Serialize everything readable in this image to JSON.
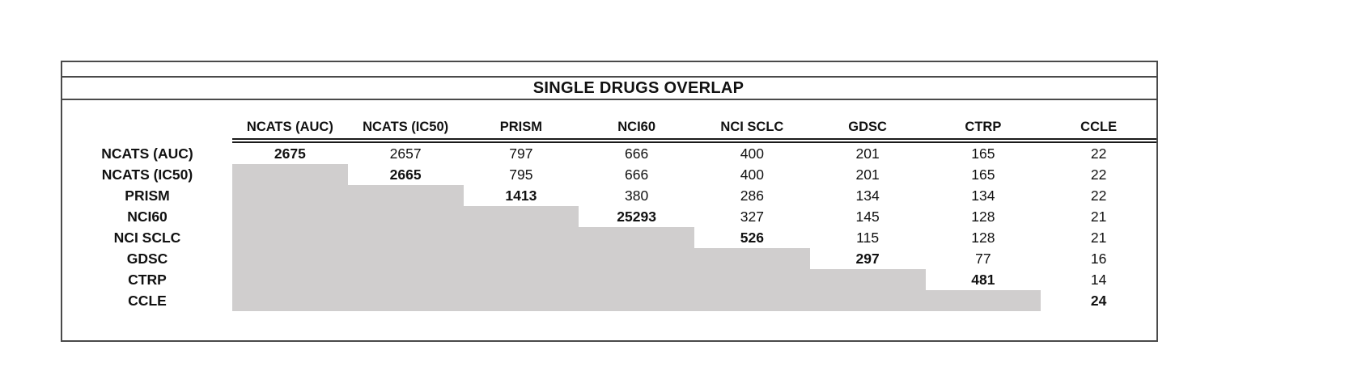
{
  "chart_data": {
    "type": "table",
    "title": "SINGLE DRUGS OVERLAP",
    "columns": [
      "NCATS (AUC)",
      "NCATS (IC50)",
      "PRISM",
      "NCI60",
      "NCI SCLC",
      "GDSC",
      "CTRP",
      "CCLE"
    ],
    "rows": [
      {
        "label": "NCATS (AUC)",
        "values": [
          "2675",
          "2657",
          "797",
          "666",
          "400",
          "201",
          "165",
          "22"
        ]
      },
      {
        "label": "NCATS (IC50)",
        "values": [
          null,
          "2665",
          "795",
          "666",
          "400",
          "201",
          "165",
          "22"
        ]
      },
      {
        "label": "PRISM",
        "values": [
          null,
          null,
          "1413",
          "380",
          "286",
          "134",
          "134",
          "22"
        ]
      },
      {
        "label": "NCI60",
        "values": [
          null,
          null,
          null,
          "25293",
          "327",
          "145",
          "128",
          "21"
        ]
      },
      {
        "label": "NCI SCLC",
        "values": [
          null,
          null,
          null,
          null,
          "526",
          "115",
          "128",
          "21"
        ]
      },
      {
        "label": "GDSC",
        "values": [
          null,
          null,
          null,
          null,
          null,
          "297",
          "77",
          "16"
        ]
      },
      {
        "label": "CTRP",
        "values": [
          null,
          null,
          null,
          null,
          null,
          null,
          "481",
          "14"
        ]
      },
      {
        "label": "CCLE",
        "values": [
          null,
          null,
          null,
          null,
          null,
          null,
          null,
          "24"
        ]
      }
    ],
    "layout_hints": {
      "diagonal_bold": true,
      "lower_triangle_shaded": true,
      "header_rule": "double",
      "legend_position": "none",
      "grid": "off"
    }
  },
  "colors": {
    "shaded_cell": "#d0cece",
    "box_border": "#4a4a4a",
    "header_rule": "#1a1a1a",
    "text": "#111111",
    "background": "#ffffff"
  }
}
